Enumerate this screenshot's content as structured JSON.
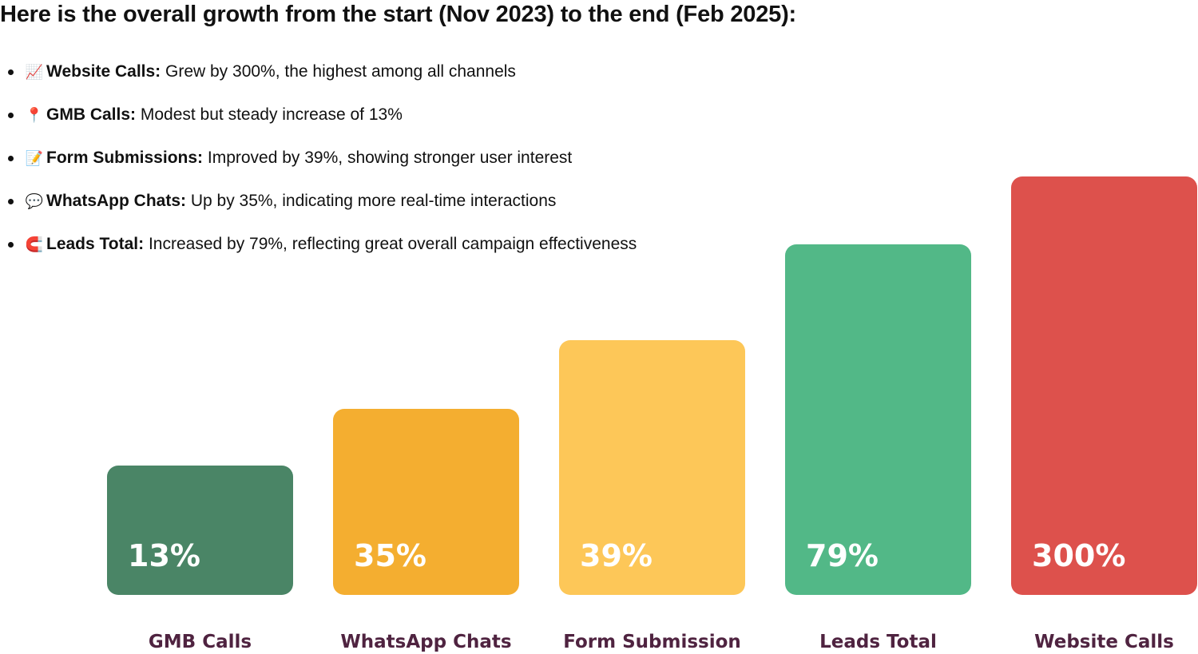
{
  "heading": "Here is the overall growth from the start (Nov 2023) to the end (Feb 2025):",
  "bullets": [
    {
      "icon": "chart-increasing-icon",
      "glyph": "📈",
      "name": "Website Calls:",
      "text": " Grew by 300%, the highest among all channels"
    },
    {
      "icon": "round-pushpin-icon",
      "glyph": "📍",
      "name": "GMB Calls:",
      "text": " Modest but steady increase of 13%"
    },
    {
      "icon": "memo-icon",
      "glyph": "📝",
      "name": "Form Submissions:",
      "text": " Improved by 39%, showing stronger user interest"
    },
    {
      "icon": "speech-balloon-icon",
      "glyph": "💬",
      "name": "WhatsApp Chats:",
      "text": " Up by 35%, indicating more real-time interactions"
    },
    {
      "icon": "magnet-icon",
      "glyph": "🧲",
      "name": "Leads Total:",
      "text": " Increased by 79%, reflecting great overall campaign effectiveness"
    }
  ],
  "chart_data": {
    "type": "bar",
    "title": "",
    "xlabel": "",
    "ylabel": "",
    "categories": [
      "GMB Calls",
      "WhatsApp Chats",
      "Form Submission",
      "Leads Total",
      "Website Calls"
    ],
    "values": [
      13,
      35,
      39,
      79,
      300
    ],
    "value_labels": [
      "13%",
      "35%",
      "39%",
      "79%",
      "300%"
    ],
    "colors": [
      "#4a8566",
      "#f4ae30",
      "#fdc758",
      "#52b887",
      "#dd514c"
    ],
    "label_color": "#4f2340",
    "value_label_color": "#ffffff",
    "grid": false,
    "legend": "none"
  }
}
